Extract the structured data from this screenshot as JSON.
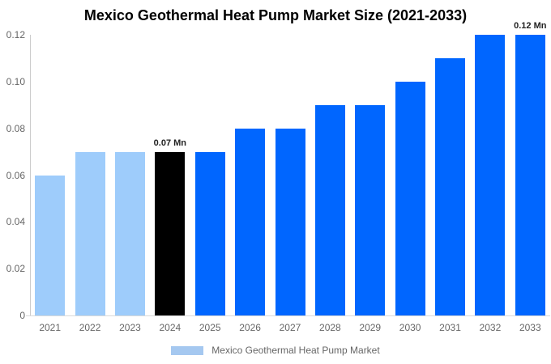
{
  "chart_data": {
    "type": "bar",
    "title": "Mexico Geothermal Heat Pump Market Size (2021-2033)",
    "categories": [
      "2021",
      "2022",
      "2023",
      "2024",
      "2025",
      "2026",
      "2027",
      "2028",
      "2029",
      "2030",
      "2031",
      "2032",
      "2033"
    ],
    "values": [
      0.06,
      0.07,
      0.07,
      0.07,
      0.07,
      0.08,
      0.08,
      0.09,
      0.09,
      0.1,
      0.11,
      0.12,
      0.12
    ],
    "bar_colors": [
      "#9ECCFB",
      "#9ECCFB",
      "#9ECCFB",
      "#000000",
      "#0066FF",
      "#0066FF",
      "#0066FF",
      "#0066FF",
      "#0066FF",
      "#0066FF",
      "#0066FF",
      "#0066FF",
      "#0066FF"
    ],
    "unit": "Mn",
    "annotations": [
      {
        "category": "2024",
        "text": "0.07 Mn"
      },
      {
        "category": "2033",
        "text": "0.12 Mn"
      }
    ],
    "xlabel": "",
    "ylabel": "",
    "ylim": [
      0,
      0.12
    ],
    "yticks": [
      0,
      0.02,
      0.04,
      0.06,
      0.08,
      0.1,
      0.12
    ],
    "ytick_labels": [
      "0",
      "0.02",
      "0.04",
      "0.06",
      "0.08",
      "0.10",
      "0.12"
    ],
    "grid": false,
    "legend": {
      "label": "Mexico Geothermal Heat Pump Market",
      "swatch_color": "#A5C8F0",
      "position": "bottom"
    },
    "colors": {
      "light_blue_bar": "#9ECCFB",
      "highlight_bar": "#000000",
      "blue_bar": "#0066FF",
      "axis_line": "#cccccc",
      "tick_text": "#666666",
      "title_text": "#000000"
    }
  }
}
